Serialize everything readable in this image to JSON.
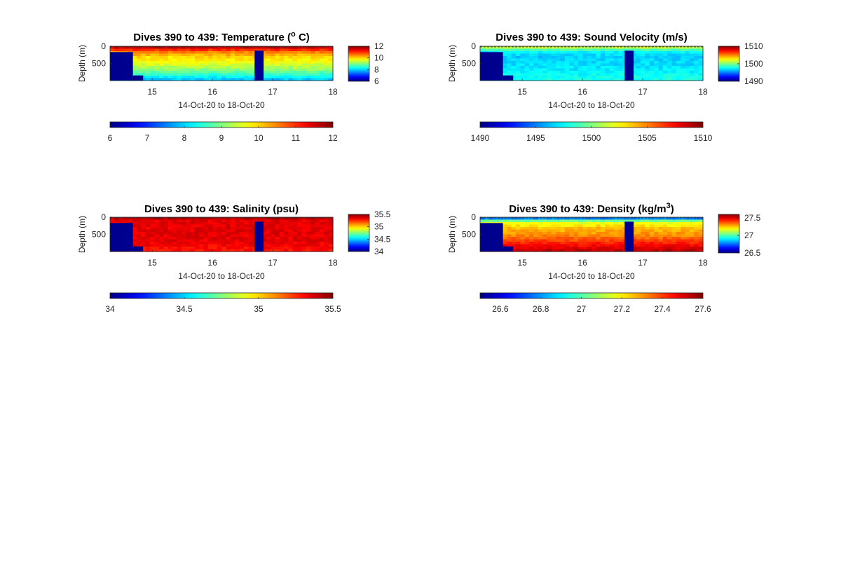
{
  "colors": {
    "colormap": "jet",
    "no_data_fill": "#00008f",
    "background": "#ffffff",
    "text": "#262626"
  },
  "chart_data": [
    {
      "type": "heatmap",
      "id": "temperature",
      "title": "Dives 390 to 439: Temperature (",
      "title_super": "o",
      "title_tail": " C)",
      "xlabel": "14-Oct-20 to 18-Oct-20",
      "ylabel": "Depth (m)",
      "xlim": [
        14.3,
        18
      ],
      "ylim": [
        0,
        1000
      ],
      "xticks": [
        "15",
        "16",
        "17",
        "18"
      ],
      "yticks": [
        "0",
        "500"
      ],
      "clim": [
        6,
        12
      ],
      "side_colorbar_ticks": [
        "12",
        "10",
        "8",
        "6"
      ],
      "bottom_colorbar_ticks": [
        "6",
        "7",
        "8",
        "9",
        "10",
        "11",
        "12"
      ],
      "profile_values": [
        {
          "depth_m": 0,
          "value": 11.8
        },
        {
          "depth_m": 60,
          "value": 11.4
        },
        {
          "depth_m": 150,
          "value": 10.6
        },
        {
          "depth_m": 300,
          "value": 10.0
        },
        {
          "depth_m": 500,
          "value": 9.6
        },
        {
          "depth_m": 700,
          "value": 9.0
        },
        {
          "depth_m": 900,
          "value": 8.2
        },
        {
          "depth_m": 1000,
          "value": 7.8
        }
      ],
      "no_data_regions": [
        {
          "x": [
            14.3,
            14.68
          ],
          "depth": [
            170,
            1000
          ]
        },
        {
          "x": [
            14.68,
            14.85
          ],
          "depth": [
            850,
            1000
          ]
        },
        {
          "x": [
            16.7,
            16.85
          ],
          "depth": [
            130,
            1000
          ]
        }
      ]
    },
    {
      "type": "heatmap",
      "id": "sound-velocity",
      "title": "Dives 390 to 439: Sound Velocity (m/s)",
      "xlabel": "14-Oct-20 to 18-Oct-20",
      "ylabel": "Depth (m)",
      "xlim": [
        14.3,
        18
      ],
      "ylim": [
        0,
        1000
      ],
      "xticks": [
        "15",
        "16",
        "17",
        "18"
      ],
      "yticks": [
        "0",
        "500"
      ],
      "clim": [
        1490,
        1510
      ],
      "side_colorbar_ticks": [
        "1510",
        "1500",
        "1490"
      ],
      "bottom_colorbar_ticks": [
        "1490",
        "1495",
        "1500",
        "1505",
        "1510"
      ],
      "profile_values": [
        {
          "depth_m": 0,
          "value": 1502.5
        },
        {
          "depth_m": 60,
          "value": 1500.5
        },
        {
          "depth_m": 150,
          "value": 1497.5
        },
        {
          "depth_m": 300,
          "value": 1496.5
        },
        {
          "depth_m": 500,
          "value": 1496.8
        },
        {
          "depth_m": 700,
          "value": 1497.2
        },
        {
          "depth_m": 900,
          "value": 1497.8
        },
        {
          "depth_m": 1000,
          "value": 1498.0
        }
      ],
      "no_data_regions": [
        {
          "x": [
            14.3,
            14.68
          ],
          "depth": [
            170,
            1000
          ]
        },
        {
          "x": [
            14.68,
            14.85
          ],
          "depth": [
            850,
            1000
          ]
        },
        {
          "x": [
            16.7,
            16.85
          ],
          "depth": [
            130,
            1000
          ]
        }
      ]
    },
    {
      "type": "heatmap",
      "id": "salinity",
      "title": "Dives 390 to 439: Salinity (psu)",
      "xlabel": "14-Oct-20 to 18-Oct-20",
      "ylabel": "Depth (m)",
      "xlim": [
        14.3,
        18
      ],
      "ylim": [
        0,
        1000
      ],
      "xticks": [
        "15",
        "16",
        "17",
        "18"
      ],
      "yticks": [
        "0",
        "500"
      ],
      "clim": [
        34,
        35.5
      ],
      "side_colorbar_ticks": [
        "35.5",
        "35",
        "34.5",
        "34"
      ],
      "bottom_colorbar_ticks": [
        "34",
        "34.5",
        "35",
        "35.5"
      ],
      "profile_values": [
        {
          "depth_m": 0,
          "value": 35.5
        },
        {
          "depth_m": 60,
          "value": 35.35
        },
        {
          "depth_m": 150,
          "value": 35.35
        },
        {
          "depth_m": 300,
          "value": 35.35
        },
        {
          "depth_m": 500,
          "value": 35.35
        },
        {
          "depth_m": 700,
          "value": 35.35
        },
        {
          "depth_m": 900,
          "value": 35.3
        },
        {
          "depth_m": 1000,
          "value": 35.3
        }
      ],
      "no_data_regions": [
        {
          "x": [
            14.3,
            14.68
          ],
          "depth": [
            170,
            1000
          ]
        },
        {
          "x": [
            14.68,
            14.85
          ],
          "depth": [
            850,
            1000
          ]
        },
        {
          "x": [
            16.7,
            16.85
          ],
          "depth": [
            130,
            1000
          ]
        }
      ]
    },
    {
      "type": "heatmap",
      "id": "density",
      "title": "Dives 390 to 439: Density (kg/m",
      "title_super": "3",
      "title_tail": ")",
      "xlabel": "14-Oct-20 to 18-Oct-20",
      "ylabel": "Depth (m)",
      "xlim": [
        14.3,
        18
      ],
      "ylim": [
        0,
        1000
      ],
      "xticks": [
        "15",
        "16",
        "17",
        "18"
      ],
      "yticks": [
        "0",
        "500"
      ],
      "clim": [
        26.5,
        27.6
      ],
      "side_colorbar_ticks": [
        "27.5",
        "27",
        "26.5"
      ],
      "bottom_colorbar_ticks": [
        "26.6",
        "26.8",
        "27",
        "27.2",
        "27.4",
        "27.6"
      ],
      "profile_values": [
        {
          "depth_m": 0,
          "value": 26.6
        },
        {
          "depth_m": 60,
          "value": 26.9
        },
        {
          "depth_m": 150,
          "value": 27.15
        },
        {
          "depth_m": 300,
          "value": 27.25
        },
        {
          "depth_m": 500,
          "value": 27.3
        },
        {
          "depth_m": 700,
          "value": 27.4
        },
        {
          "depth_m": 900,
          "value": 27.5
        },
        {
          "depth_m": 1000,
          "value": 27.55
        }
      ],
      "no_data_regions": [
        {
          "x": [
            14.3,
            14.68
          ],
          "depth": [
            170,
            1000
          ]
        },
        {
          "x": [
            14.68,
            14.85
          ],
          "depth": [
            850,
            1000
          ]
        },
        {
          "x": [
            16.7,
            16.85
          ],
          "depth": [
            130,
            1000
          ]
        }
      ]
    }
  ]
}
